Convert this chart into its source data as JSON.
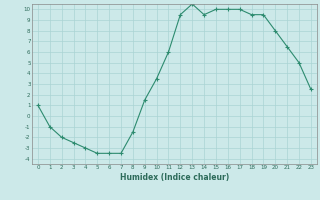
{
  "x": [
    0,
    1,
    2,
    3,
    4,
    5,
    6,
    7,
    8,
    9,
    10,
    11,
    12,
    13,
    14,
    15,
    16,
    17,
    18,
    19,
    20,
    21,
    22,
    23
  ],
  "y": [
    1,
    -1,
    -2,
    -2.5,
    -3,
    -3.5,
    -3.5,
    -3.5,
    -1.5,
    1.5,
    3.5,
    6,
    9.5,
    10.5,
    9.5,
    10,
    10,
    10,
    9.5,
    9.5,
    8,
    6.5,
    5,
    2.5
  ],
  "xlabel": "Humidex (Indice chaleur)",
  "xlim": [
    -0.5,
    23.5
  ],
  "ylim": [
    -4.5,
    10.5
  ],
  "yticks": [
    -4,
    -3,
    -2,
    -1,
    0,
    1,
    2,
    3,
    4,
    5,
    6,
    7,
    8,
    9,
    10
  ],
  "xticks": [
    0,
    1,
    2,
    3,
    4,
    5,
    6,
    7,
    8,
    9,
    10,
    11,
    12,
    13,
    14,
    15,
    16,
    17,
    18,
    19,
    20,
    21,
    22,
    23
  ],
  "line_color": "#2d8b6f",
  "marker": "+",
  "bg_color": "#cce9e9",
  "grid_color": "#aad4d4",
  "spine_color": "#888888",
  "label_color": "#2d6b5a",
  "tick_color": "#2d6b5a"
}
